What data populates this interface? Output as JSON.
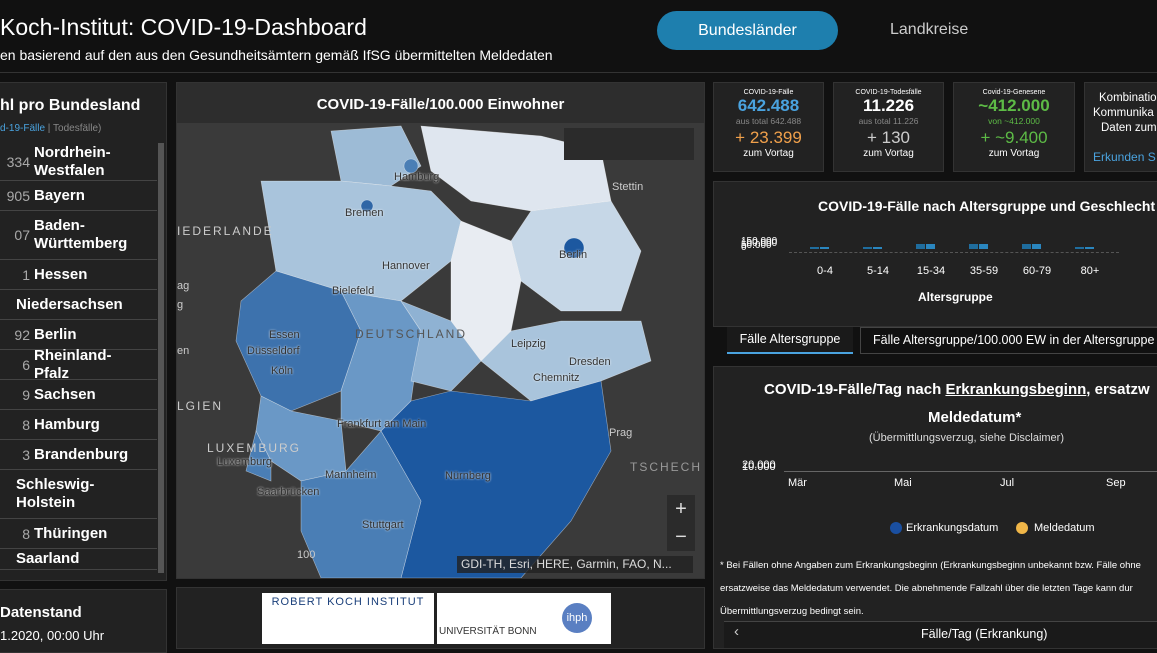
{
  "header": {
    "title": "Koch-Institut: COVID-19-Dashboard",
    "subtitle": "en basierend auf den aus den Gesundheitsämtern gemäß IfSG übermittelten Meldedaten",
    "tabs": [
      "Bundesländer",
      "Landkreise"
    ]
  },
  "states_panel": {
    "title": "hl pro Bundesland",
    "legend_cases": "d-19-Fälle",
    "legend_deaths": "Todesfälle",
    "rows": [
      {
        "count": "334",
        "name": "Nordrhein-Westfalen"
      },
      {
        "count": "905",
        "name": "Bayern"
      },
      {
        "count": "07",
        "name": "Baden-Württemberg"
      },
      {
        "count": "1",
        "name": "Hessen"
      },
      {
        "name": "Niedersachsen"
      },
      {
        "count": "92",
        "name": "Berlin"
      },
      {
        "count": "6",
        "name": "Rheinland-Pfalz"
      },
      {
        "count": "9",
        "name": "Sachsen"
      },
      {
        "count": "8",
        "name": "Hamburg"
      },
      {
        "count": "3",
        "name": "Brandenburg"
      },
      {
        "name": "Schleswig-Holstein"
      },
      {
        "count": "8",
        "name": "Thüringen"
      },
      {
        "name": "Saarland"
      }
    ],
    "status_title": "Datenstand",
    "status_date": "1.2020, 00:00 Uhr"
  },
  "map": {
    "title": "COVID-19-Fälle/100.000 Einwohner",
    "attribution": "GDI-TH, Esri, HERE, Garmin, FAO, N...",
    "scale": "100",
    "labels": [
      "Hamburg",
      "Stettin",
      "Bremen",
      "Berlin",
      "Hannover",
      "Bielefeld",
      "DEUTSCHLAND",
      "Essen",
      "Düsseldorf",
      "Köln",
      "Leipzig",
      "Dresden",
      "Chemnitz",
      "Frankfurt am Main",
      "Prag",
      "LUXEMBURG",
      "Luxemburg",
      "Mannheim",
      "Nürnberg",
      "Saarbrücken",
      "Stuttgart",
      "TSCHECH",
      "IEDERLANDE",
      "ag",
      "g",
      "en",
      "LGIEN"
    ]
  },
  "logos": [
    "ROBERT KOCH INSTITUT",
    "UNIVERSITÄT BONN",
    "ihph"
  ],
  "cards": [
    {
      "label": "COVID-19-Fälle",
      "value": "642.488",
      "sub": "aus total 642.488",
      "delta": "+ 23.399",
      "foot": "zum Vortag"
    },
    {
      "label": "COVID-19-Todesfälle",
      "value": "11.226",
      "sub": "aus total 11.226",
      "delta": "+ 130",
      "foot": "zum Vortag"
    },
    {
      "label": "Covid-19-Genesene",
      "value": "~412.000",
      "sub": "von ~412.000",
      "delta": "+ ~9.400",
      "foot": "zum Vortag"
    }
  ],
  "info_card": {
    "lines": [
      "Kombination",
      "Kommunika",
      "Daten zum"
    ],
    "link": "Erkunden S"
  },
  "age_chart": {
    "title": "COVID-19-Fälle nach Altersgruppe und Geschlecht",
    "yticks": [
      "150.000",
      "100.000",
      "50.000",
      "0"
    ],
    "categories": [
      "0-4",
      "5-14",
      "15-34",
      "35-59",
      "60-79",
      "80+"
    ],
    "xlabel": "Altersgruppe",
    "tabs": [
      "Fälle Altersgruppe",
      "Fälle Altersgruppe/100.000 EW in der Altersgruppe"
    ]
  },
  "daily_chart": {
    "title_start": "COVID-19-Fälle/Tag nach",
    "title_link": "Erkrankungsbeginn",
    "title_end": ", ersatzw",
    "title_line2": "Meldedatum*",
    "subtitle": "(Übermittlungsverzug, siehe Disclaimer)",
    "yticks": [
      "20.000",
      "10.000"
    ],
    "months": [
      "Mär",
      "Mai",
      "Jul",
      "Sep"
    ],
    "legend": [
      "Erkrankungsdatum",
      "Meldedatum"
    ],
    "footnote": [
      "* Bei Fällen ohne Angaben zum Erkrankungsbeginn (Erkrankungsbeginn unbekannt bzw. Fälle ohne",
      "ersatzweise das Meldedatum verwendet. Die abnehmende Fallzahl über die letzten Tage kann dur",
      "Übermittlungsverzug bedingt sein."
    ],
    "footer": "Fälle/Tag (Erkrankung)"
  }
}
